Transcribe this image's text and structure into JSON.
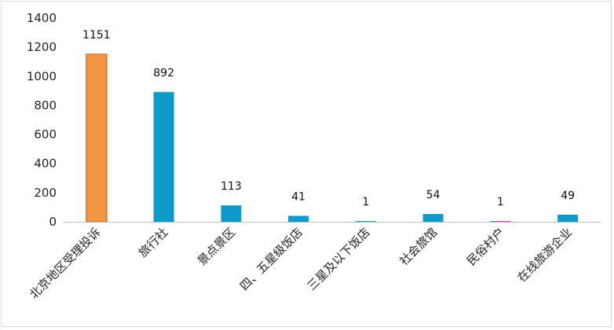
{
  "chart_data": {
    "type": "bar",
    "title": "",
    "xlabel": "",
    "ylabel": "",
    "ylim": [
      0,
      1400
    ],
    "yticks": [
      0,
      200,
      400,
      600,
      800,
      1000,
      1200,
      1400
    ],
    "grid": false,
    "legend": "none",
    "categories": [
      "北京地区受理投诉",
      "旅行社",
      "景点景区",
      "四、五星级饭店",
      "三星及以下饭店",
      "社会旅馆",
      "民俗村户",
      "在线旅游企业"
    ],
    "values": [
      1151,
      892,
      113,
      41,
      1,
      54,
      1,
      49
    ],
    "data_labels": [
      "1151",
      "892",
      "113",
      "41",
      "1",
      "54",
      "1",
      "49"
    ],
    "highlight_index": 0,
    "colors": {
      "highlight_fill": "#f39643",
      "highlight_stroke": "#d9722a",
      "bar_fill": "#0f9ac8",
      "axis": "#bfbfbf"
    }
  }
}
